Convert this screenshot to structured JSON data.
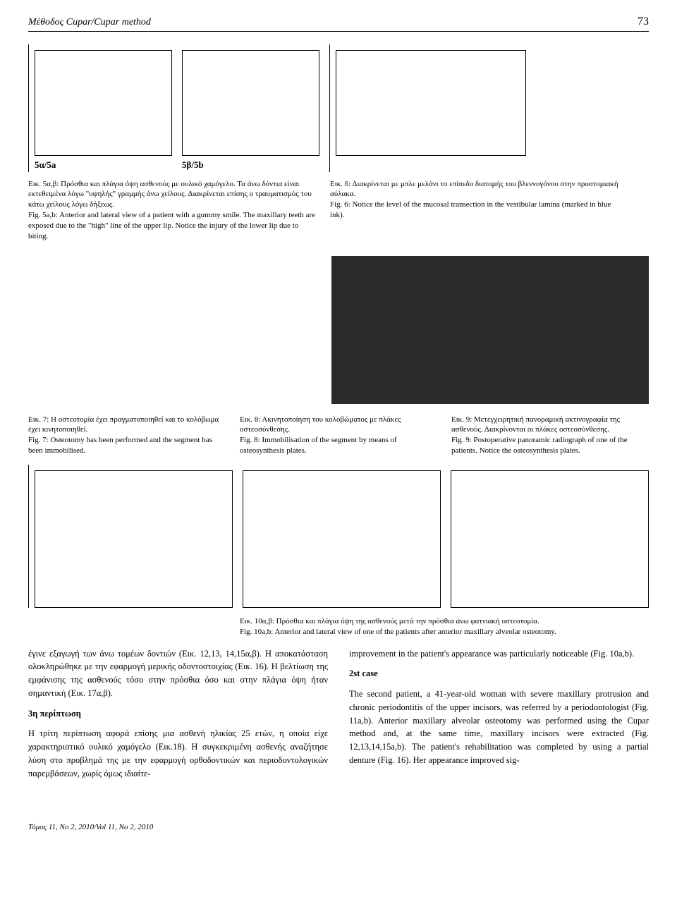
{
  "header": {
    "title": "Μέθοδος Cupar/Cupar method",
    "page_number": "73"
  },
  "fig5": {
    "label_a": "5α/5a",
    "label_b": "5β/5b",
    "caption_gr": "Εικ. 5α,β: Πρόσθια και πλάγια όψη ασθενούς με ουλικό χαμόγελο. Τα άνω δόντια είναι εκτεθειμένα λόγω \"υψηλής\" γραμμής άνω χείλους. Διακρίνεται επίσης ο τραυματισμός του κάτω χείλους λόγω δήξεως.",
    "caption_en": "Fig. 5a,b: Anterior and lateral view of a patient with a gummy smile. The maxillary teeth are exposed due to the \"high\" line of the upper lip. Notice the injury of the lower lip due to biting."
  },
  "fig6": {
    "caption_gr": "Εικ. 6: Διακρίνεται με μπλε μελάνι το επίπεδο διατομής του βλεννογόνου στην προστομιακή αύλακα.",
    "caption_en": "Fig. 6: Notice the level of the mucosal transection in the vestibular lamina (marked in blue ink)."
  },
  "fig7": {
    "caption_gr": "Εικ. 7: Η οστεοτομία έχει πραγματοποιηθεί και το κολόβωμα έχει κινητοποιηθεί.",
    "caption_en": "Fig. 7: Osteotomy has been performed and the segment has been immobilised."
  },
  "fig8": {
    "caption_gr": "Εικ. 8: Ακινητοποίηση του κολοβώματος με πλάκες οστεοσύνθεσης.",
    "caption_en": "Fig. 8: Immobilisation of the segment by means of osteosynthesis plates."
  },
  "fig9": {
    "caption_gr": "Εικ. 9: Μετεγχειρητική πανοραμική ακτινογραφία της ασθενούς. Διακρίνονται οι πλάκες οστεοσύνθεσης.",
    "caption_en": "Fig. 9: Postoperative panoramic radiograph of one of the patients. Notice the osteosynthesis plates."
  },
  "fig10": {
    "caption_gr": "Εικ. 10α,β: Πρόσθια και πλάγια όψη της ασθενούς μετά την πρόσθια άνω φατνιακή οστεοτομία.",
    "caption_en": "Fig. 10a,b: Anterior and lateral view of one of the patients after anterior maxillary alveolar osteotomy."
  },
  "body_text": {
    "left_p1": "έγινε εξαγωγή των άνω τομέων δοντιών (Εικ. 12,13, 14,15α,β). Η αποκατάσταση ολοκληρώθηκε με την εφαρμογή μερικής οδοντοστοιχίας (Εικ. 16). Η βελτίωση της εμφάνισης της ασθενούς τόσο στην πρόσθια όσο και στην πλάγια όψη ήταν σημαντική (Εικ. 17α,β).",
    "left_h": "3η περίπτωση",
    "left_p2": "Η τρίτη περίπτωση αφορά επίσης μια ασθενή ηλικίας 25 ετών, η οποία είχε χαρακτηριστικό ουλικό χαμόγελο (Εικ.18). Η συγκεκριμένη ασθενής αναζήτησε λύση στο προβλημά της με την εφαρμογή ορθοδοντικών και περιοδοντολογικών παρεμβάσεων, χωρίς όμως ιδιαίτε-",
    "right_p1": "improvement in the patient's appearance was particularly noticeable (Fig. 10a,b).",
    "right_h": "2st case",
    "right_p2": "The second patient, a 41-year-old woman with severe maxillary protrusion and chronic periodontitis of the upper incisors, was referred by a periodontologist (Fig. 11a,b). Anterior maxillary alveolar osteotomy was performed using the Cupar method and, at the same time, maxillary incisors were extracted (Fig. 12,13,14,15a,b). The patient's rehabilitation was completed by using a partial denture (Fig. 16). Her appearance improved sig-"
  },
  "footer": "Τόμος 11, No 2, 2010/Vol 11, No 2, 2010"
}
